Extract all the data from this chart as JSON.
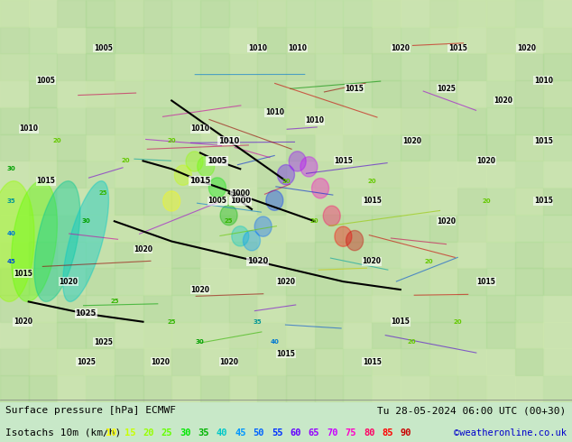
{
  "title_line1": "Surface pressure [hPa] ECMWF",
  "title_line1_right": "Tu 28-05-2024 06:00 UTC (00+30)",
  "title_line2_left": "Isotachs 10m (km/h)",
  "copyright": "©weatheronline.co.uk",
  "isotach_values": [
    10,
    15,
    20,
    25,
    30,
    35,
    40,
    45,
    50,
    55,
    60,
    65,
    70,
    75,
    80,
    85,
    90
  ],
  "isotach_colors": [
    "#ffff00",
    "#c8ff00",
    "#96ff00",
    "#64ff00",
    "#00e600",
    "#00b400",
    "#00c8c8",
    "#0096ff",
    "#0064ff",
    "#0032ff",
    "#6400ff",
    "#9600ff",
    "#c800ff",
    "#ff00c8",
    "#ff0064",
    "#ff0000",
    "#c80000"
  ],
  "bg_color": "#e8f5e8",
  "map_bg": "#d0e8d0",
  "bottom_bar_color": "#ffffff",
  "label1_color": "#000000",
  "label2_color": "#000000",
  "copyright_color": "#0000ff",
  "fig_width": 6.34,
  "fig_height": 4.9,
  "dpi": 100
}
